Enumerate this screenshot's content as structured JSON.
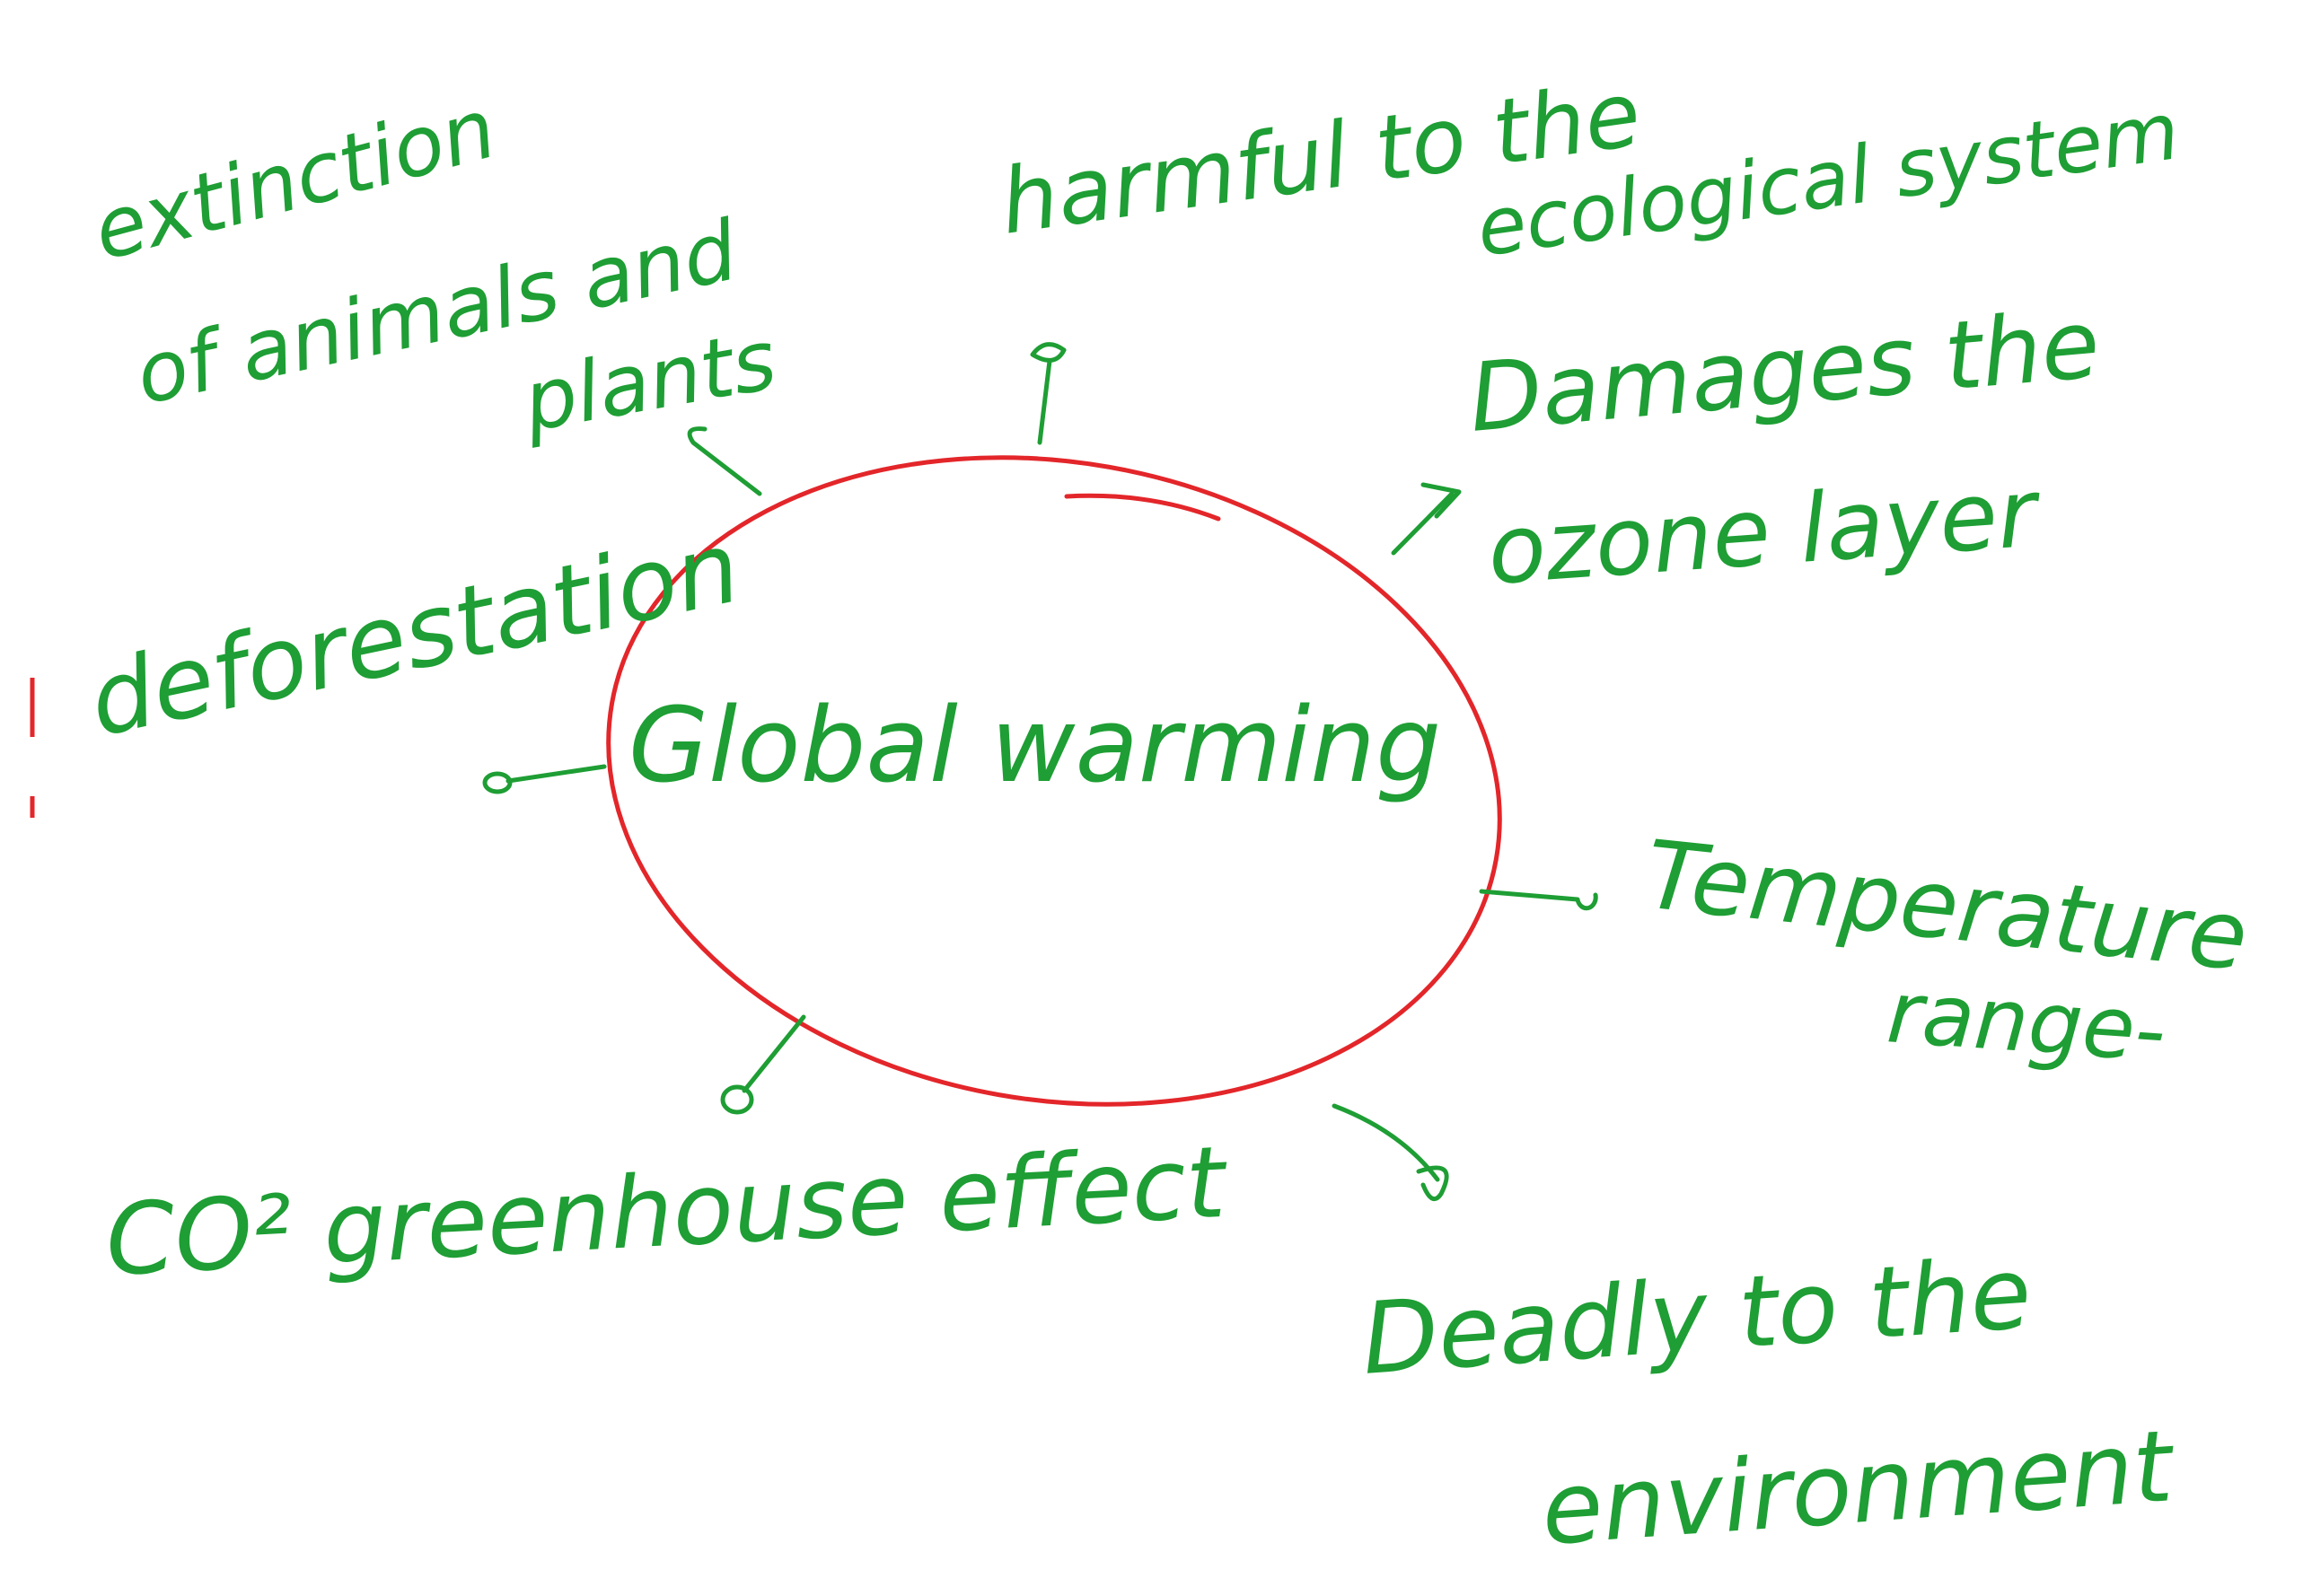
{
  "center": {
    "label": "Global warming"
  },
  "nodes": [
    {
      "lines": [
        "extinction",
        "of animals and",
        "plants"
      ]
    },
    {
      "lines": [
        "harmful to the",
        "ecological system"
      ]
    },
    {
      "lines": [
        "Damages the",
        "ozone layer"
      ]
    },
    {
      "lines": [
        "deforestation"
      ]
    },
    {
      "lines": [
        "Temperature",
        "range-"
      ]
    },
    {
      "lines": [
        "CO² greenhouse effect"
      ]
    },
    {
      "lines": [
        "Deadly to the",
        "environment"
      ]
    }
  ]
}
